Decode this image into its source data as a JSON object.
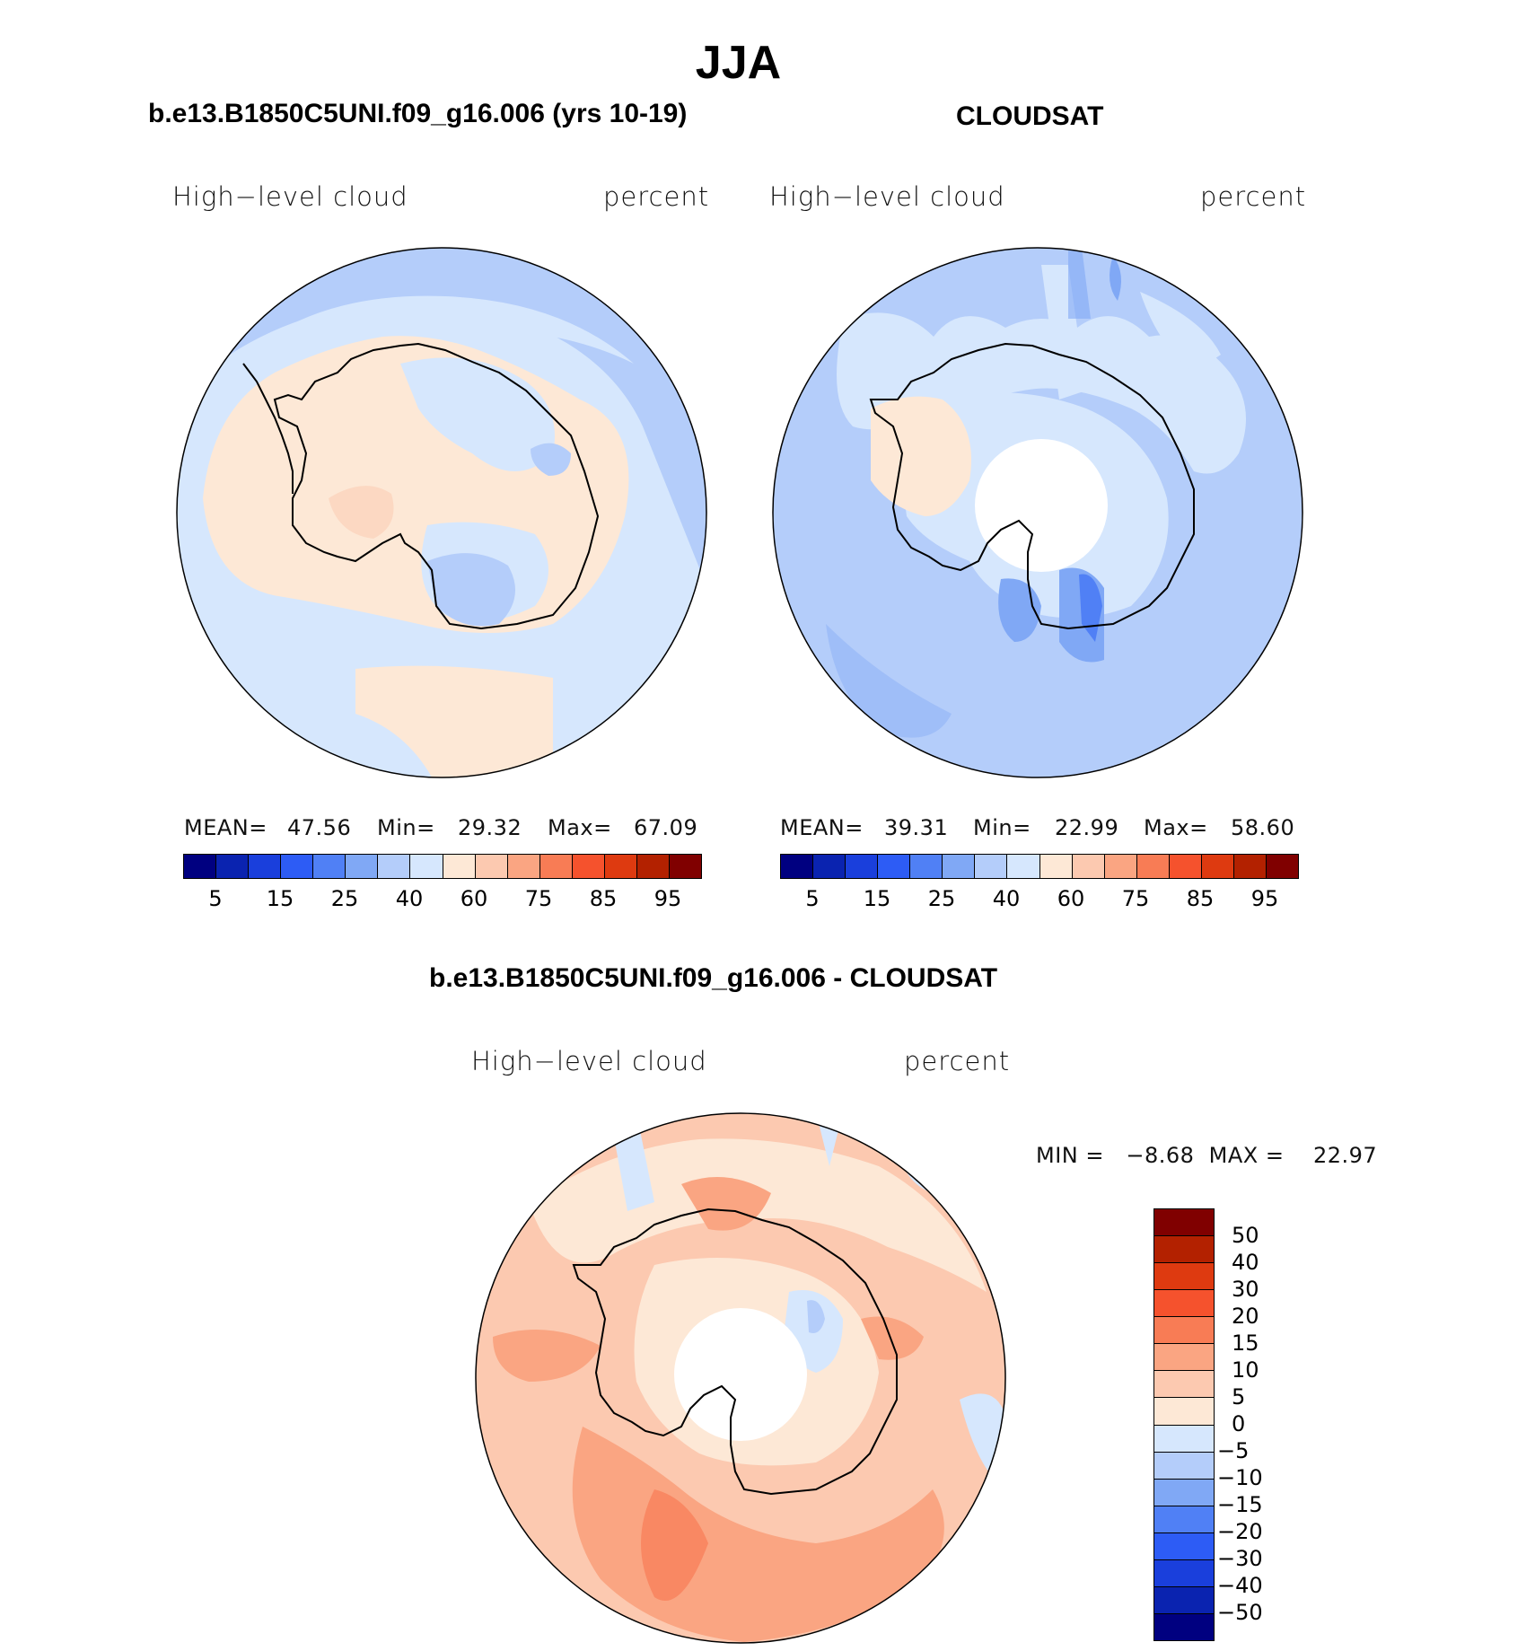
{
  "title": "JJA",
  "panels": [
    {
      "title": "b.e13.B1850C5UNI.f09_g16.006 (yrs 10-19)",
      "var_label": "High−level cloud",
      "units": "percent",
      "stats": {
        "mean_label": "MEAN=",
        "mean": "47.56",
        "min_label": "Min=",
        "min": "29.32",
        "max_label": "Max=",
        "max": "67.09"
      }
    },
    {
      "title": "CLOUDSAT",
      "var_label": "High−level cloud",
      "units": "percent",
      "stats": {
        "mean_label": "MEAN=",
        "mean": "39.31",
        "min_label": "Min=",
        "min": "22.99",
        "max_label": "Max=",
        "max": "58.60"
      }
    },
    {
      "title": "b.e13.B1850C5UNI.f09_g16.006 - CLOUDSAT",
      "var_label": "High−level cloud",
      "units": "percent",
      "stats_text": "MIN =   −8.68  MAX =    22.97"
    }
  ],
  "colorbar_abs": {
    "colors": [
      "#000080",
      "#0a23b0",
      "#1a3fdc",
      "#2d5cf5",
      "#5080f5",
      "#80a8f5",
      "#b4cdfa",
      "#d6e7fd",
      "#fde8d6",
      "#fcc9b0",
      "#faa582",
      "#f87c55",
      "#f5522d",
      "#de3a10",
      "#b32100",
      "#800000"
    ],
    "tick_labels": [
      "5",
      "15",
      "25",
      "40",
      "60",
      "75",
      "85",
      "95"
    ]
  },
  "colorbar_diff": {
    "colors": [
      "#800000",
      "#b32100",
      "#de3a10",
      "#f5522d",
      "#f87c55",
      "#faa582",
      "#fcc9b0",
      "#fde8d6",
      "#d6e7fd",
      "#b4cdfa",
      "#80a8f5",
      "#5080f5",
      "#2d5cf5",
      "#1a3fdc",
      "#0a23b0",
      "#000080"
    ],
    "tick_labels": [
      "50",
      "40",
      "30",
      "20",
      "15",
      "10",
      "5",
      "0",
      "−5",
      "−10",
      "−15",
      "−20",
      "−30",
      "−40",
      "−50"
    ]
  }
}
